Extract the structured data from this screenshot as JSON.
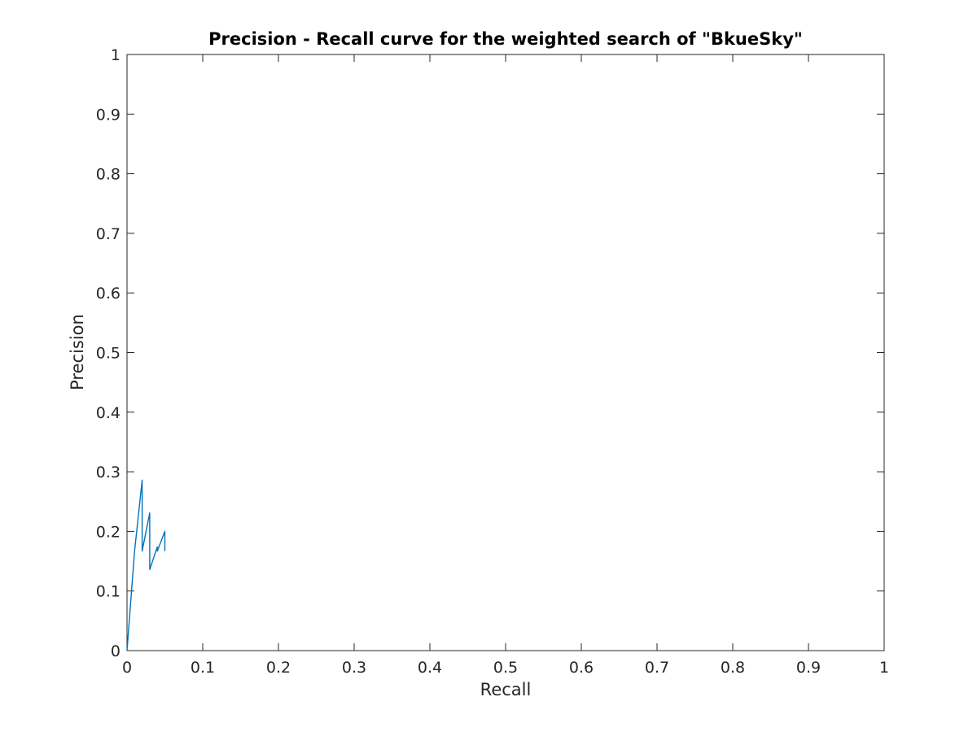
{
  "chart_data": {
    "type": "line",
    "title": "Precision - Recall curve for the weighted search of \"BkueSky\"",
    "xlabel": "Recall",
    "ylabel": "Precision",
    "xlim": [
      0,
      1
    ],
    "ylim": [
      0,
      1
    ],
    "xticks": [
      "0",
      "0.1",
      "0.2",
      "0.3",
      "0.4",
      "0.5",
      "0.6",
      "0.7",
      "0.8",
      "0.9",
      "1"
    ],
    "yticks": [
      "0",
      "0.1",
      "0.2",
      "0.3",
      "0.4",
      "0.5",
      "0.6",
      "0.7",
      "0.8",
      "0.9",
      "1"
    ],
    "grid": false,
    "box": true,
    "series": [
      {
        "color": "#0072bd",
        "x": [
          0,
          0.01,
          0.02,
          0.02,
          0.03,
          0.03,
          0.04,
          0.04,
          0.05,
          0.05
        ],
        "y": [
          0,
          0.167,
          0.286,
          0.167,
          0.231,
          0.136,
          0.174,
          0.167,
          0.2,
          0.167
        ]
      }
    ]
  }
}
